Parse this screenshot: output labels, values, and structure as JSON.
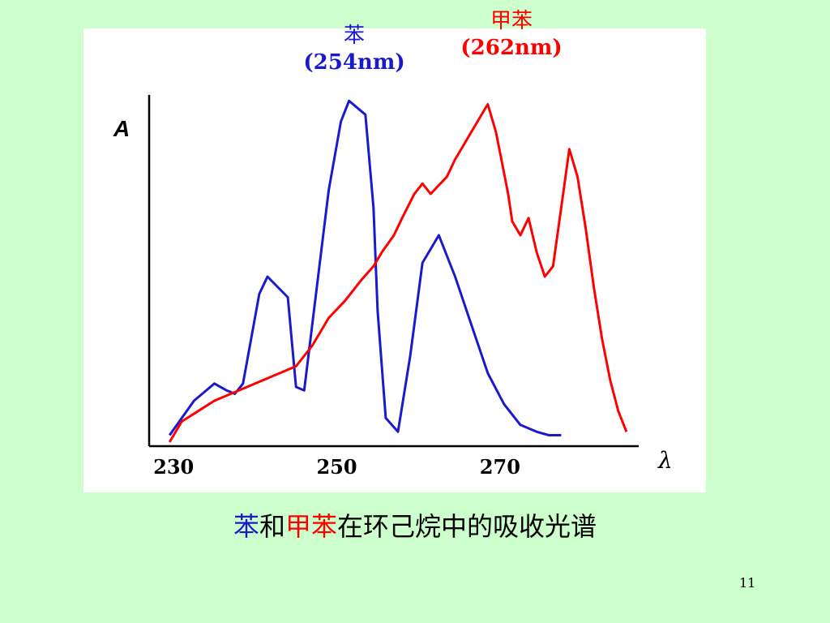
{
  "chart_data": {
    "type": "line",
    "ylabel": "A",
    "xlabel": "λ",
    "x_ticks": [
      230,
      250,
      270
    ],
    "xlim": [
      227,
      287
    ],
    "ylim": [
      0,
      1
    ],
    "annotations": [
      {
        "name": "苯",
        "value": "(254nm)",
        "color": "#1a1acc"
      },
      {
        "name": "甲苯",
        "value": "(262nm)",
        "color": "#ff0000"
      }
    ],
    "series": [
      {
        "color": "#1a1acc",
        "x": [
          229.5,
          232.5,
          235,
          236.5,
          237.5,
          238.5,
          240.5,
          241.5,
          244,
          245,
          246,
          247.5,
          249,
          250.5,
          251.5,
          253.5,
          254.5,
          255,
          256,
          257.5,
          259,
          260.5,
          262.5,
          264.5,
          266.5,
          268.5,
          270.5,
          272.5,
          274.5,
          276,
          277.5
        ],
        "y": [
          0.02,
          0.12,
          0.17,
          0.15,
          0.14,
          0.17,
          0.43,
          0.48,
          0.42,
          0.16,
          0.15,
          0.44,
          0.73,
          0.93,
          0.99,
          0.95,
          0.68,
          0.38,
          0.07,
          0.03,
          0.25,
          0.52,
          0.6,
          0.48,
          0.34,
          0.2,
          0.11,
          0.05,
          0.03,
          0.02,
          0.02
        ]
      },
      {
        "color": "#ff0000",
        "x": [
          229.5,
          231,
          233,
          235,
          237,
          239,
          241,
          243,
          245,
          247,
          249,
          251,
          253,
          254.5,
          255.5,
          257,
          258,
          259.5,
          260.5,
          261.5,
          263.5,
          264.5,
          265.5,
          266.5,
          267.5,
          268.5,
          269.5,
          270,
          271,
          271.5,
          272.5,
          273.5,
          274.5,
          275.5,
          276.5,
          277.5,
          278.5,
          279.5,
          280.5,
          281.5,
          282.5,
          283.5,
          284.5,
          285.5
        ],
        "y": [
          0.0,
          0.06,
          0.09,
          0.12,
          0.14,
          0.16,
          0.18,
          0.2,
          0.22,
          0.28,
          0.36,
          0.41,
          0.47,
          0.51,
          0.55,
          0.6,
          0.65,
          0.72,
          0.75,
          0.72,
          0.77,
          0.82,
          0.86,
          0.9,
          0.94,
          0.98,
          0.9,
          0.84,
          0.72,
          0.64,
          0.6,
          0.65,
          0.55,
          0.48,
          0.51,
          0.68,
          0.85,
          0.77,
          0.62,
          0.45,
          0.3,
          0.18,
          0.09,
          0.03
        ]
      }
    ]
  },
  "caption": {
    "part1": "苯",
    "part2": "和",
    "part3": "甲苯",
    "part4": "在环己烷中的吸收光谱"
  },
  "page_number": "11"
}
